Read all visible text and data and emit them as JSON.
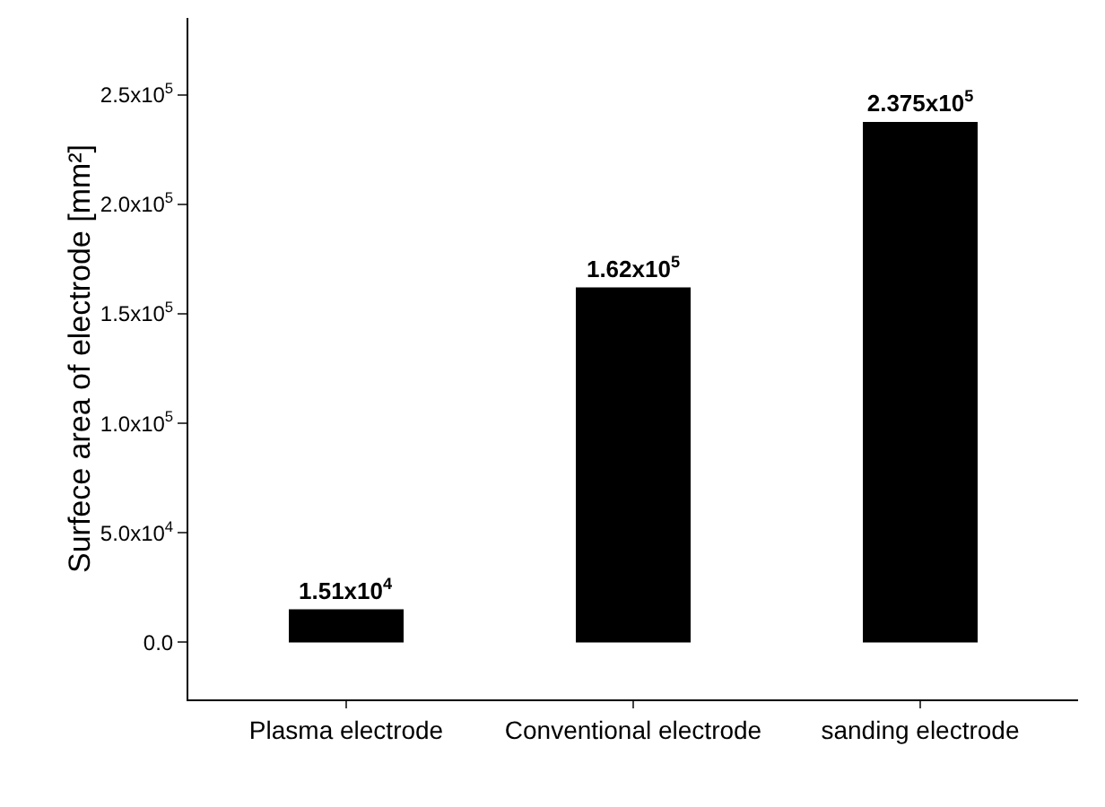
{
  "chart_data": {
    "type": "bar",
    "ylabel": "Surfece area of electrode [mm²]",
    "categories": [
      "Plasma electrode",
      "Conventional electrode",
      "sanding electrode"
    ],
    "values": [
      15100,
      162000,
      237500
    ],
    "value_labels": [
      "1.51x10$^{4}$",
      "1.62x10$^{5}$",
      "2.375x10$^{5}$"
    ],
    "color": "#000000",
    "ylim": [
      -26000,
      285000
    ],
    "yticks": [
      {
        "value": 0,
        "label": "0.0"
      },
      {
        "value": 50000,
        "label": "5.0x10$^{4}$"
      },
      {
        "value": 100000,
        "label": "1.0x10$^{5}$"
      },
      {
        "value": 150000,
        "label": "1.5x10$^{5}$"
      },
      {
        "value": 200000,
        "label": "2.0x10$^{5}$"
      },
      {
        "value": 250000,
        "label": "2.5x10$^{5}$"
      }
    ],
    "grid": false
  }
}
